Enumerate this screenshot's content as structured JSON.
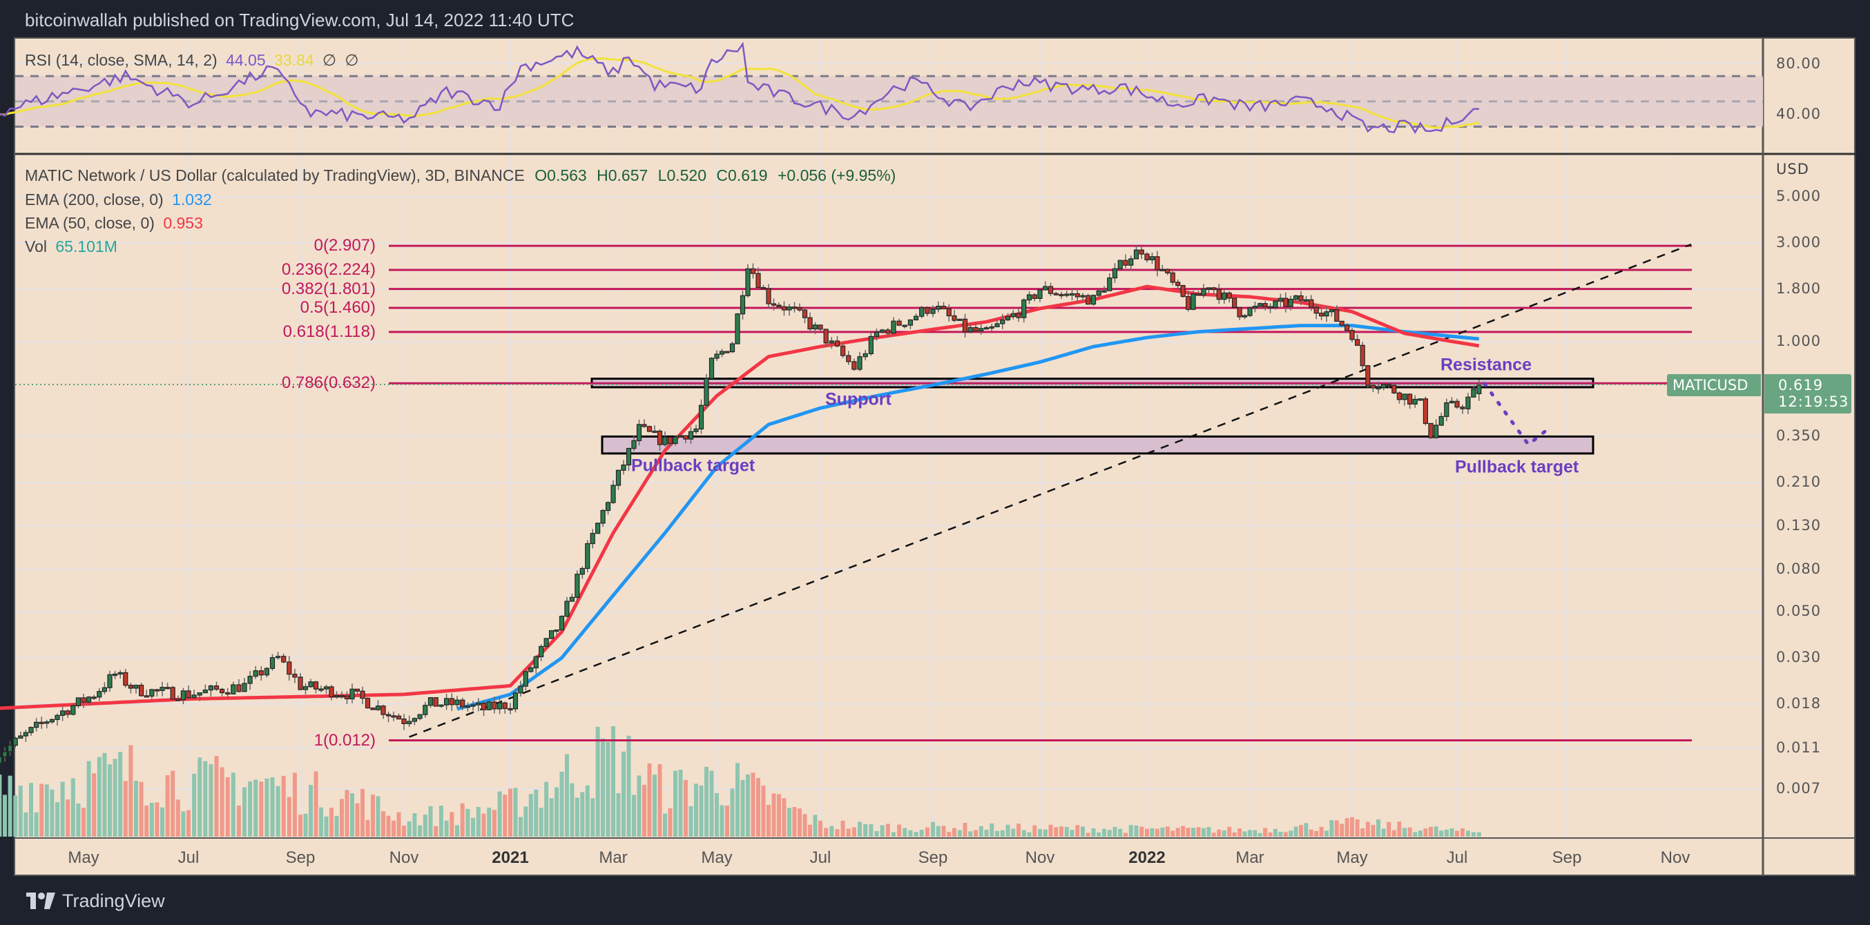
{
  "header": {
    "text": "bitcoinwallah published on TradingView.com, Jul 14, 2022 11:40 UTC"
  },
  "rsi_legend": {
    "label": "RSI (14, close, SMA, 14, 2)",
    "value": "44.05",
    "sma": "33.84",
    "extra1": "∅",
    "extra2": "∅"
  },
  "rsi_axis": [
    "80.00",
    "40.00"
  ],
  "legend": {
    "symbol": "MATIC Network / US Dollar (calculated by TradingView), 3D, BINANCE",
    "open": "O0.563",
    "high": "H0.657",
    "low": "L0.520",
    "close": "C0.619",
    "change": "+0.056 (+9.95%)",
    "ema200_label": "EMA (200, close, 0)",
    "ema200_value": "1.032",
    "ema50_label": "EMA (50, close, 0)",
    "ema50_value": "0.953",
    "vol_label": "Vol",
    "vol_value": "65.101M"
  },
  "price_axis": {
    "currency": "USD",
    "ticks": [
      "5.000",
      "3.000",
      "1.800",
      "1.000",
      "0.350",
      "0.210",
      "0.130",
      "0.080",
      "0.050",
      "0.030",
      "0.018",
      "0.011",
      "0.007"
    ]
  },
  "price_tag": {
    "symbol": "MATICUSD",
    "price": "0.619",
    "countdown": "12:19:53"
  },
  "time_axis": [
    {
      "label": "May",
      "m": 4
    },
    {
      "label": "Jul",
      "m": 6
    },
    {
      "label": "Sep",
      "m": 8
    },
    {
      "label": "Nov",
      "m": 10
    },
    {
      "label": "2021",
      "m": 12,
      "bold": true
    },
    {
      "label": "Mar",
      "m": 14
    },
    {
      "label": "May",
      "m": 16
    },
    {
      "label": "Jul",
      "m": 18
    },
    {
      "label": "Sep",
      "m": 20
    },
    {
      "label": "Nov",
      "m": 22
    },
    {
      "label": "2022",
      "m": 24,
      "bold": true
    },
    {
      "label": "Mar",
      "m": 26
    },
    {
      "label": "May",
      "m": 28
    },
    {
      "label": "Jul",
      "m": 30
    },
    {
      "label": "Sep",
      "m": 32
    },
    {
      "label": "Nov",
      "m": 34
    }
  ],
  "fib_levels": [
    {
      "label": "0(2.907)",
      "price": 2.907
    },
    {
      "label": "0.236(2.224)",
      "price": 2.224
    },
    {
      "label": "0.382(1.801)",
      "price": 1.801
    },
    {
      "label": "0.5(1.460)",
      "price": 1.46
    },
    {
      "label": "0.618(1.118)",
      "price": 1.118
    },
    {
      "label": "0.786(0.632)",
      "price": 0.632
    },
    {
      "label": "1(0.012)",
      "price": 0.012
    }
  ],
  "annotations": {
    "support": "Support",
    "resistance": "Resistance",
    "pullback_left": "Pullback target",
    "pullback_right": "Pullback target"
  },
  "footer": {
    "brand": "TradingView"
  },
  "colors": {
    "bg": "#f2e0cd",
    "up": "#2e7d4f",
    "down": "#c0392b",
    "vol_up": "#8ec5b0",
    "vol_down": "#f0998a",
    "ema50": "#f23645",
    "ema200": "#2196f3",
    "fib": "#c2185b",
    "rsi": "#7e57c2",
    "rsi_sma": "#f2e23a",
    "zone": "#d8bfcf"
  },
  "chart_data": {
    "type": "candlestick",
    "title": "MATIC Network / US Dollar, 3D, BINANCE",
    "scale": "log",
    "ylim": [
      0.005,
      6
    ],
    "x_unit": "months since Jan 2020",
    "price_path": [
      [
        2.3,
        0.01
      ],
      [
        3.3,
        0.015
      ],
      [
        4.2,
        0.02
      ],
      [
        4.6,
        0.025
      ],
      [
        5.0,
        0.021
      ],
      [
        6,
        0.02
      ],
      [
        7,
        0.022
      ],
      [
        7.6,
        0.03
      ],
      [
        8.0,
        0.022
      ],
      [
        9,
        0.02
      ],
      [
        10,
        0.015
      ],
      [
        10.5,
        0.018
      ],
      [
        11,
        0.018
      ],
      [
        11.5,
        0.017
      ],
      [
        12,
        0.018
      ],
      [
        12.5,
        0.03
      ],
      [
        13,
        0.045
      ],
      [
        13.5,
        0.1
      ],
      [
        14,
        0.2
      ],
      [
        14.5,
        0.38
      ],
      [
        15,
        0.33
      ],
      [
        15.6,
        0.38
      ],
      [
        15.9,
        0.8
      ],
      [
        16.3,
        1.0
      ],
      [
        16.6,
        2.4
      ],
      [
        17,
        1.6
      ],
      [
        17.5,
        1.4
      ],
      [
        18,
        1.1
      ],
      [
        18.6,
        0.75
      ],
      [
        19,
        1.1
      ],
      [
        19.6,
        1.3
      ],
      [
        20,
        1.5
      ],
      [
        20.6,
        1.15
      ],
      [
        21,
        1.1
      ],
      [
        21.6,
        1.4
      ],
      [
        22,
        1.8
      ],
      [
        22.5,
        1.7
      ],
      [
        23,
        1.6
      ],
      [
        23.6,
        2.5
      ],
      [
        23.9,
        2.8
      ],
      [
        24.3,
        2.2
      ],
      [
        24.8,
        1.5
      ],
      [
        25.2,
        1.9
      ],
      [
        25.8,
        1.4
      ],
      [
        26.5,
        1.5
      ],
      [
        27,
        1.6
      ],
      [
        27.6,
        1.35
      ],
      [
        28,
        1.1
      ],
      [
        28.3,
        0.65
      ],
      [
        28.6,
        0.62
      ],
      [
        29.3,
        0.5
      ],
      [
        29.5,
        0.36
      ],
      [
        29.8,
        0.48
      ],
      [
        30.1,
        0.5
      ],
      [
        30.45,
        0.619
      ]
    ],
    "ema50": [
      [
        2.1,
        0.017
      ],
      [
        6,
        0.019
      ],
      [
        10,
        0.02
      ],
      [
        12,
        0.022
      ],
      [
        13,
        0.04
      ],
      [
        14,
        0.12
      ],
      [
        15,
        0.3
      ],
      [
        16,
        0.55
      ],
      [
        17,
        0.85
      ],
      [
        18,
        0.95
      ],
      [
        19,
        1.05
      ],
      [
        20,
        1.15
      ],
      [
        21,
        1.25
      ],
      [
        22,
        1.45
      ],
      [
        23,
        1.6
      ],
      [
        24,
        1.85
      ],
      [
        25,
        1.7
      ],
      [
        26,
        1.65
      ],
      [
        27,
        1.55
      ],
      [
        28,
        1.4
      ],
      [
        29,
        1.1
      ],
      [
        30.45,
        0.953
      ]
    ],
    "ema200": [
      [
        11,
        0.017
      ],
      [
        12,
        0.02
      ],
      [
        13,
        0.03
      ],
      [
        14,
        0.06
      ],
      [
        15,
        0.12
      ],
      [
        16,
        0.25
      ],
      [
        17,
        0.4
      ],
      [
        18,
        0.48
      ],
      [
        19,
        0.55
      ],
      [
        20,
        0.62
      ],
      [
        21,
        0.7
      ],
      [
        22,
        0.8
      ],
      [
        23,
        0.95
      ],
      [
        24,
        1.05
      ],
      [
        25,
        1.12
      ],
      [
        26,
        1.16
      ],
      [
        27,
        1.2
      ],
      [
        28,
        1.2
      ],
      [
        29,
        1.12
      ],
      [
        30.45,
        1.032
      ]
    ],
    "rsi": [
      [
        2.3,
        41
      ],
      [
        4.8,
        70
      ],
      [
        6.1,
        48
      ],
      [
        7.5,
        76
      ],
      [
        8.2,
        41
      ],
      [
        10.1,
        36
      ],
      [
        10.8,
        58
      ],
      [
        11.8,
        47
      ],
      [
        12.2,
        77
      ],
      [
        13.3,
        89
      ],
      [
        14.0,
        72
      ],
      [
        14.3,
        86
      ],
      [
        14.8,
        63
      ],
      [
        15.7,
        60
      ],
      [
        15.9,
        81
      ],
      [
        16.5,
        94
      ],
      [
        16.6,
        64
      ],
      [
        17.3,
        54
      ],
      [
        18.6,
        39
      ],
      [
        19.4,
        63
      ],
      [
        19.7,
        65
      ],
      [
        20.6,
        44
      ],
      [
        21.6,
        66
      ],
      [
        23.0,
        59
      ],
      [
        23.5,
        62
      ],
      [
        24.5,
        48
      ],
      [
        25.3,
        52
      ],
      [
        26.0,
        45
      ],
      [
        27.0,
        50
      ],
      [
        27.6,
        45
      ],
      [
        28.3,
        28
      ],
      [
        29.0,
        30
      ],
      [
        29.6,
        26
      ],
      [
        30.0,
        38
      ],
      [
        30.45,
        44.05
      ]
    ],
    "volume_millions": [
      [
        2.3,
        700
      ],
      [
        4,
        900
      ],
      [
        5,
        1000
      ],
      [
        6,
        800
      ],
      [
        7,
        900
      ],
      [
        8,
        700
      ],
      [
        9,
        600
      ],
      [
        10,
        300
      ],
      [
        11,
        350
      ],
      [
        12,
        500
      ],
      [
        13,
        900
      ],
      [
        14,
        1300
      ],
      [
        15,
        700
      ],
      [
        16,
        900
      ],
      [
        17,
        600
      ],
      [
        18,
        200
      ],
      [
        19,
        150
      ],
      [
        20,
        150
      ],
      [
        22,
        130
      ],
      [
        24,
        120
      ],
      [
        26,
        100
      ],
      [
        28,
        200
      ],
      [
        29,
        150
      ],
      [
        30.45,
        65.101
      ]
    ],
    "trendline": [
      [
        10.1,
        0.012
      ],
      [
        34.5,
        2.907
      ]
    ],
    "zones": [
      {
        "name": "Resistance/Support",
        "low": 0.605,
        "high": 0.665
      },
      {
        "name": "Pullback target",
        "low": 0.29,
        "high": 0.35
      }
    ],
    "projection": [
      [
        30.5,
        0.63
      ],
      [
        31.3,
        0.32
      ],
      [
        31.6,
        0.37
      ]
    ]
  }
}
